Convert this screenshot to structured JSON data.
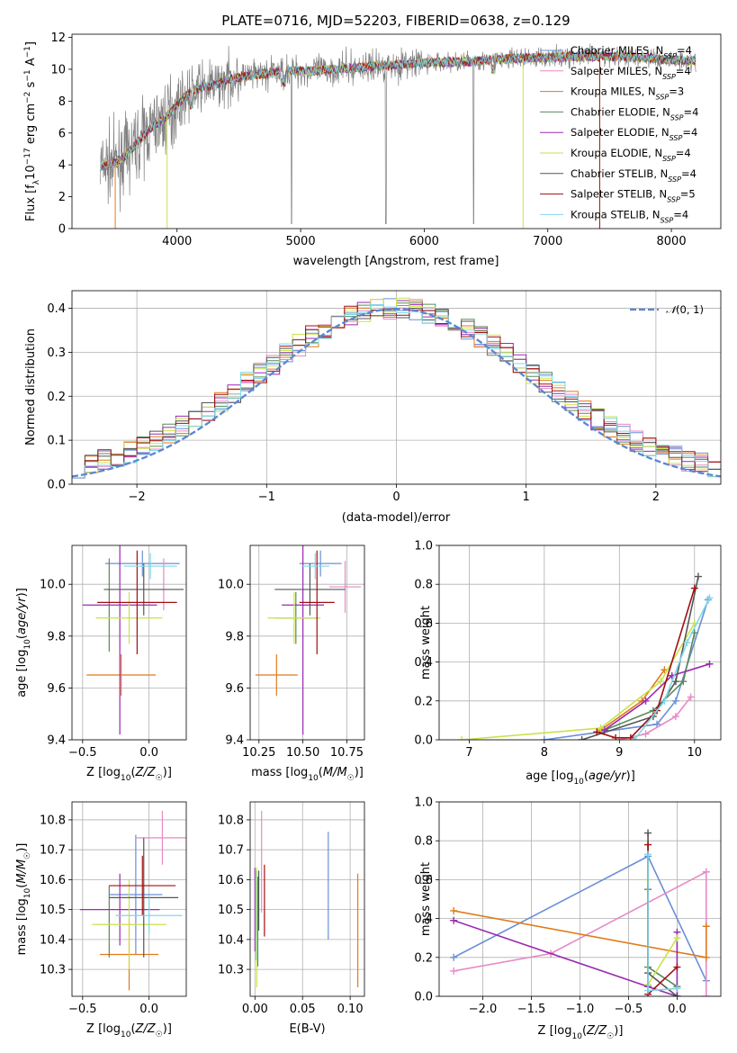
{
  "title": "PLATE=0716, MJD=52203, FIBERID=0638, z=0.129",
  "colors": {
    "Chabrier MILES": "#6a8fd6",
    "Salpeter MILES": "#e78ac3",
    "Kroupa MILES": "#e07b1a",
    "Chabrier ELODIE": "#5a8a5a",
    "Salpeter ELODIE": "#9a2ab0",
    "Kroupa ELODIE": "#c9e24a",
    "Chabrier STELIB": "#555555",
    "Salpeter STELIB": "#a01010",
    "Kroupa STELIB": "#7dd8e8",
    "data": "#808080",
    "normal": "#5b86d2"
  },
  "chart_data": [
    {
      "type": "line",
      "id": "spectrum",
      "xlabel": "wavelength [Angstrom, rest frame]",
      "ylabel": "Flux [f_λ10^-17 erg cm^-2 s^-1 A^-1]",
      "xlim": [
        3150,
        8400
      ],
      "ylim": [
        0,
        12.2
      ],
      "xticks": [
        4000,
        5000,
        6000,
        7000,
        8000
      ],
      "yticks": [
        0,
        2,
        4,
        6,
        8,
        10,
        12
      ],
      "legend_position": "top-right",
      "legend": [
        "Chabrier MILES, N_SSP=4",
        "Salpeter MILES, N_SSP=4",
        "Kroupa MILES, N_SSP=3",
        "Chabrier ELODIE, N_SSP=4",
        "Salpeter ELODIE, N_SSP=4",
        "Kroupa ELODIE, N_SSP=4",
        "Chabrier STELIB, N_SSP=4",
        "Salpeter STELIB, N_SSP=5",
        "Kroupa STELIB, N_SSP=4"
      ],
      "continuum": [
        [
          3380,
          3.9
        ],
        [
          3500,
          4.1
        ],
        [
          3600,
          4.7
        ],
        [
          3700,
          5.6
        ],
        [
          3800,
          6.4
        ],
        [
          3900,
          6.9
        ],
        [
          4000,
          7.8
        ],
        [
          4100,
          8.5
        ],
        [
          4200,
          8.9
        ],
        [
          4300,
          9.0
        ],
        [
          4400,
          9.3
        ],
        [
          4500,
          9.5
        ],
        [
          4700,
          9.7
        ],
        [
          4900,
          9.9
        ],
        [
          5100,
          9.9
        ],
        [
          5300,
          10.0
        ],
        [
          5600,
          10.2
        ],
        [
          6000,
          10.4
        ],
        [
          6400,
          10.5
        ],
        [
          6800,
          10.7
        ],
        [
          7200,
          10.8
        ],
        [
          7600,
          10.8
        ],
        [
          8000,
          10.6
        ],
        [
          8200,
          10.5
        ]
      ]
    },
    {
      "type": "bar",
      "id": "residual-histogram",
      "xlabel": "(data-model)/error",
      "ylabel": "Normed distribution",
      "xlim": [
        -2.5,
        2.5
      ],
      "ylim": [
        0,
        0.44
      ],
      "xticks": [
        -2,
        -1,
        0,
        1,
        2
      ],
      "yticks": [
        0.0,
        0.1,
        0.2,
        0.3,
        0.4
      ],
      "legend": [
        "𝒩(0,1)"
      ],
      "legend_position": "top-right",
      "grid": true
    },
    {
      "type": "scatter",
      "id": "age-vs-metallicity",
      "xlabel": "Z [log10(Z/Z☉)]",
      "ylabel": "age  [log10(age/yr)]",
      "xlim": [
        -0.58,
        0.28
      ],
      "ylim": [
        9.4,
        10.15
      ],
      "xticks": [
        -0.5,
        0.0
      ],
      "yticks": [
        9.4,
        9.6,
        9.8,
        10.0
      ],
      "points": [
        {
          "model": "Chabrier MILES",
          "x": -0.05,
          "xerr": 0.28,
          "y": 10.08,
          "yerr": 0.05
        },
        {
          "model": "Salpeter MILES",
          "x": 0.11,
          "xerr": 0.0,
          "y": 10.0,
          "yerr": 0.1
        },
        {
          "model": "Kroupa MILES",
          "x": -0.21,
          "xerr": 0.26,
          "y": 9.65,
          "yerr": 0.08
        },
        {
          "model": "Chabrier ELODIE",
          "x": -0.3,
          "xerr": 0.0,
          "y": 9.92,
          "yerr": 0.18
        },
        {
          "model": "Salpeter ELODIE",
          "x": -0.22,
          "xerr": 0.28,
          "y": 9.92,
          "yerr": 0.5
        },
        {
          "model": "Kroupa ELODIE",
          "x": -0.15,
          "xerr": 0.25,
          "y": 9.87,
          "yerr": 0.1
        },
        {
          "model": "Chabrier STELIB",
          "x": -0.04,
          "xerr": 0.3,
          "y": 9.98,
          "yerr": 0.1
        },
        {
          "model": "Salpeter STELIB",
          "x": -0.09,
          "xerr": 0.3,
          "y": 9.93,
          "yerr": 0.2
        },
        {
          "model": "Kroupa STELIB",
          "x": 0.01,
          "xerr": 0.2,
          "y": 10.07,
          "yerr": 0.05
        }
      ]
    },
    {
      "type": "scatter",
      "id": "age-vs-mass",
      "xlabel": "mass [log10(M/M☉)]",
      "ylabel": "",
      "xlim": [
        10.2,
        10.85
      ],
      "ylim": [
        9.4,
        10.15
      ],
      "xticks": [
        10.25,
        10.5,
        10.75
      ],
      "yticks": [
        9.4,
        9.6,
        9.8,
        10.0
      ],
      "points": [
        {
          "model": "Chabrier MILES",
          "x": 10.6,
          "xerr": 0.12,
          "y": 10.08,
          "yerr": 0.05
        },
        {
          "model": "Salpeter MILES",
          "x": 10.74,
          "xerr": 0.09,
          "y": 9.99,
          "yerr": 0.1
        },
        {
          "model": "Kroupa MILES",
          "x": 10.35,
          "xerr": 0.12,
          "y": 9.65,
          "yerr": 0.08
        },
        {
          "model": "Chabrier ELODIE",
          "x": 10.46,
          "xerr": 0.12,
          "y": 9.87,
          "yerr": 0.1
        },
        {
          "model": "Salpeter ELODIE",
          "x": 10.5,
          "xerr": 0.12,
          "y": 9.92,
          "yerr": 0.5
        },
        {
          "model": "Kroupa ELODIE",
          "x": 10.45,
          "xerr": 0.15,
          "y": 9.87,
          "yerr": 0.1
        },
        {
          "model": "Chabrier STELIB",
          "x": 10.54,
          "xerr": 0.2,
          "y": 9.98,
          "yerr": 0.1
        },
        {
          "model": "Salpeter STELIB",
          "x": 10.58,
          "xerr": 0.1,
          "y": 9.93,
          "yerr": 0.2
        },
        {
          "model": "Kroupa STELIB",
          "x": 10.57,
          "xerr": 0.08,
          "y": 10.07,
          "yerr": 0.05
        }
      ]
    },
    {
      "type": "line",
      "id": "mass-weight-vs-age",
      "xlabel": "age  [log10(age/yr)]",
      "ylabel": "mass weight",
      "xlim": [
        6.6,
        10.35
      ],
      "ylim": [
        0,
        1.0
      ],
      "xticks": [
        7,
        8,
        9,
        10
      ],
      "yticks": [
        0.0,
        0.2,
        0.4,
        0.6,
        0.8,
        1.0
      ],
      "grid": true,
      "series": [
        {
          "model": "Chabrier MILES",
          "x": [
            8.0,
            9.5,
            9.75,
            10.18
          ],
          "y": [
            0.0,
            0.08,
            0.2,
            0.72
          ]
        },
        {
          "model": "Salpeter MILES",
          "x": [
            9.0,
            9.35,
            9.75,
            9.95
          ],
          "y": [
            0.0,
            0.03,
            0.12,
            0.22
          ]
        },
        {
          "model": "Kroupa MILES",
          "x": [
            8.75,
            9.3,
            9.6
          ],
          "y": [
            0.05,
            0.2,
            0.36
          ]
        },
        {
          "model": "Chabrier ELODIE",
          "x": [
            8.8,
            9.45,
            9.85,
            10.0
          ],
          "y": [
            0.05,
            0.15,
            0.3,
            0.55
          ]
        },
        {
          "model": "Salpeter ELODIE",
          "x": [
            8.8,
            9.35,
            9.7,
            10.2
          ],
          "y": [
            0.05,
            0.2,
            0.33,
            0.39
          ]
        },
        {
          "model": "Kroupa ELODIE",
          "x": [
            6.9,
            8.75,
            9.55,
            10.0
          ],
          "y": [
            0.0,
            0.06,
            0.3,
            0.6
          ]
        },
        {
          "model": "Chabrier STELIB",
          "x": [
            8.5,
            9.45,
            9.75,
            10.05
          ],
          "y": [
            0.0,
            0.12,
            0.3,
            0.84
          ]
        },
        {
          "model": "Salpeter STELIB",
          "x": [
            8.7,
            8.95,
            9.15,
            9.5,
            10.0
          ],
          "y": [
            0.04,
            0.01,
            0.01,
            0.15,
            0.78
          ]
        },
        {
          "model": "Kroupa STELIB",
          "x": [
            9.2,
            9.6,
            9.9,
            10.2
          ],
          "y": [
            0.0,
            0.2,
            0.5,
            0.73
          ]
        }
      ]
    },
    {
      "type": "scatter",
      "id": "mass-vs-metallicity",
      "xlabel": "Z [log10(Z/Z☉)]",
      "ylabel": "mass [log10(M/M☉)]",
      "xlim": [
        -0.58,
        0.28
      ],
      "ylim": [
        10.21,
        10.86
      ],
      "xticks": [
        -0.5,
        0.0
      ],
      "yticks": [
        10.3,
        10.4,
        10.5,
        10.6,
        10.7,
        10.8
      ],
      "points": [
        {
          "model": "Chabrier MILES",
          "x": -0.1,
          "xerr": 0.2,
          "y": 10.55,
          "yerr": 0.2
        },
        {
          "model": "Salpeter MILES",
          "x": 0.1,
          "xerr": 0.2,
          "y": 10.74,
          "yerr": 0.09
        },
        {
          "model": "Kroupa MILES",
          "x": -0.15,
          "xerr": 0.22,
          "y": 10.35,
          "yerr": 0.12
        },
        {
          "model": "Chabrier ELODIE",
          "x": -0.3,
          "xerr": 0.0,
          "y": 10.46,
          "yerr": 0.12
        },
        {
          "model": "Salpeter ELODIE",
          "x": -0.22,
          "xerr": 0.3,
          "y": 10.5,
          "yerr": 0.12
        },
        {
          "model": "Kroupa ELODIE",
          "x": -0.15,
          "xerr": 0.28,
          "y": 10.45,
          "yerr": 0.15
        },
        {
          "model": "Chabrier STELIB",
          "x": -0.04,
          "xerr": 0.26,
          "y": 10.54,
          "yerr": 0.2
        },
        {
          "model": "Salpeter STELIB",
          "x": -0.05,
          "xerr": 0.25,
          "y": 10.58,
          "yerr": 0.1
        },
        {
          "model": "Kroupa STELIB",
          "x": 0.0,
          "xerr": 0.25,
          "y": 10.48,
          "yerr": 0.06
        }
      ]
    },
    {
      "type": "scatter",
      "id": "mass-vs-ebv",
      "xlabel": "E(B-V)",
      "ylabel": "",
      "xlim": [
        -0.005,
        0.115
      ],
      "ylim": [
        10.21,
        10.86
      ],
      "xticks": [
        0.0,
        0.05,
        0.1
      ],
      "yticks": [
        10.3,
        10.4,
        10.5,
        10.6,
        10.7,
        10.8
      ],
      "points": [
        {
          "model": "Chabrier MILES",
          "x": 0.077,
          "y": 10.58,
          "yerr": 0.18
        },
        {
          "model": "Salpeter MILES",
          "x": 0.007,
          "y": 10.66,
          "yerr": 0.17
        },
        {
          "model": "Kroupa MILES",
          "x": 0.108,
          "y": 10.43,
          "yerr": 0.19
        },
        {
          "model": "Chabrier ELODIE",
          "x": 0.003,
          "y": 10.46,
          "yerr": 0.15
        },
        {
          "model": "Salpeter ELODIE",
          "x": 0.0,
          "y": 10.5,
          "yerr": 0.14
        },
        {
          "model": "Kroupa ELODIE",
          "x": 0.002,
          "y": 10.44,
          "yerr": 0.2
        },
        {
          "model": "Chabrier STELIB",
          "x": 0.004,
          "y": 10.53,
          "yerr": 0.1
        },
        {
          "model": "Salpeter STELIB",
          "x": 0.01,
          "y": 10.53,
          "yerr": 0.12
        },
        {
          "model": "Kroupa STELIB",
          "x": 0.001,
          "y": 10.48,
          "yerr": 0.15
        }
      ]
    },
    {
      "type": "line",
      "id": "mass-weight-vs-metallicity",
      "xlabel": "Z [log10(Z/Z☉)]",
      "ylabel": "mass weight",
      "xlim": [
        -2.45,
        0.45
      ],
      "ylim": [
        0,
        1.0
      ],
      "xticks": [
        -2.0,
        -1.5,
        -1.0,
        -0.5,
        0.0
      ],
      "yticks": [
        0.0,
        0.2,
        0.4,
        0.6,
        0.8,
        1.0
      ],
      "grid": true,
      "series": [
        {
          "model": "Chabrier MILES",
          "x": [
            -2.3,
            -0.3,
            0.3
          ],
          "y": [
            0.2,
            0.72,
            0.08
          ]
        },
        {
          "model": "Salpeter MILES",
          "x": [
            -2.3,
            -1.3,
            0.3,
            0.3
          ],
          "y": [
            0.13,
            0.22,
            0.64,
            0.0
          ]
        },
        {
          "model": "Kroupa MILES",
          "x": [
            -2.3,
            0.3,
            0.3
          ],
          "y": [
            0.44,
            0.2,
            0.36
          ]
        },
        {
          "model": "Chabrier ELODIE",
          "x": [
            -0.3,
            -0.3,
            0.0
          ],
          "y": [
            0.55,
            0.15,
            0.05
          ]
        },
        {
          "model": "Salpeter ELODIE",
          "x": [
            -2.3,
            -0.3,
            0.0,
            0.0
          ],
          "y": [
            0.39,
            0.05,
            0.0,
            0.33
          ]
        },
        {
          "model": "Kroupa ELODIE",
          "x": [
            -0.3,
            -0.3,
            0.0
          ],
          "y": [
            0.6,
            0.06,
            0.3
          ]
        },
        {
          "model": "Chabrier STELIB",
          "x": [
            -0.3,
            -0.3,
            0.0
          ],
          "y": [
            0.84,
            0.12,
            0.0
          ]
        },
        {
          "model": "Salpeter STELIB",
          "x": [
            -0.3,
            -0.3,
            0.0
          ],
          "y": [
            0.78,
            0.01,
            0.15
          ]
        },
        {
          "model": "Kroupa STELIB",
          "x": [
            -0.3,
            -0.3,
            0.0
          ],
          "y": [
            0.73,
            0.03,
            0.04
          ]
        }
      ]
    }
  ]
}
